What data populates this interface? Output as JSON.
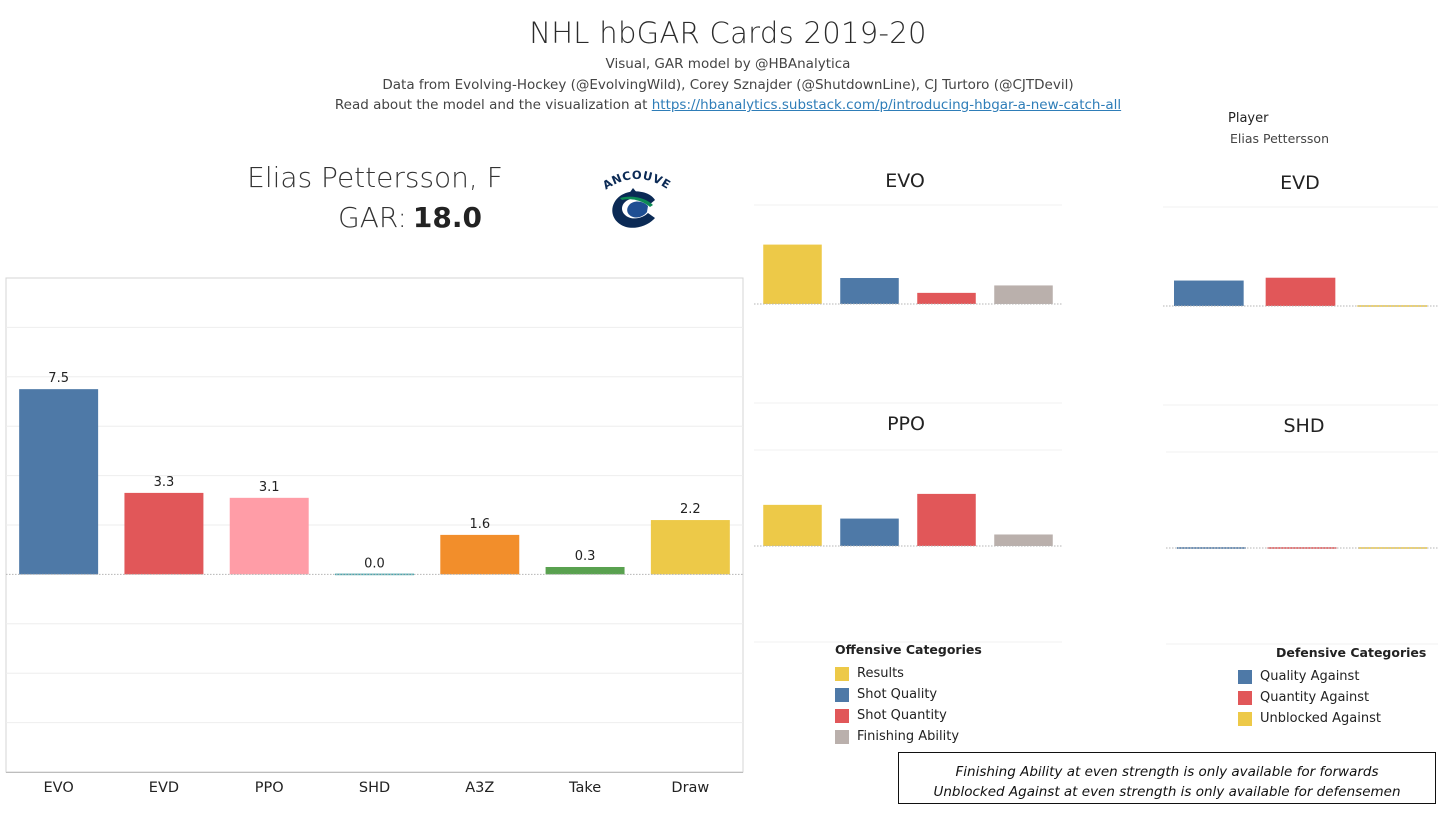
{
  "header": {
    "title": "NHL hbGAR Cards 2019-20",
    "subtitle1": "Visual, GAR model by @HBAnalytica",
    "subtitle2": "Data from Evolving-Hockey (@EvolvingWild), Corey Sznajder (@ShutdownLine), CJ Turtoro (@CJTDevil)",
    "subtitle3_prefix": "Read about the model and the visualization at ",
    "subtitle3_link": "https://hbanalytics.substack.com/p/introducing-hbgar-a-new-catch-all"
  },
  "filter": {
    "label": "Player",
    "value": "Elias Pettersson"
  },
  "player": {
    "name": "Elias Pettersson, F",
    "gar_label": "GAR:",
    "gar_value": "18.0"
  },
  "logo": {
    "text": "VANCOUVER",
    "colors": {
      "navy": "#0b2a55",
      "blue": "#1f4f93",
      "green": "#0d8a55"
    }
  },
  "colors": {
    "evo": "#4e79a7",
    "evd": "#e15759",
    "ppo": "#ff9da7",
    "shd": "#4aa8b0",
    "a3z": "#f28e2b",
    "take": "#59a14f",
    "draw": "#edc948",
    "results": "#edc948",
    "shot_quality": "#4e79a7",
    "shot_quantity": "#e15759",
    "finishing": "#bab0ac",
    "quality_against": "#4e79a7",
    "quantity_against": "#e15759",
    "unblocked_against": "#edc948"
  },
  "chart_data": [
    {
      "type": "bar",
      "id": "gar-components",
      "categories": [
        "EVO",
        "EVD",
        "PPO",
        "SHD",
        "A3Z",
        "Take",
        "Draw"
      ],
      "values": [
        7.5,
        3.3,
        3.1,
        0.0,
        1.6,
        0.3,
        2.2
      ],
      "labels": [
        "7.5",
        "3.3",
        "3.1",
        "0.0",
        "1.6",
        "0.3",
        "2.2"
      ],
      "colors": [
        "#4e79a7",
        "#e15759",
        "#ff9da7",
        "#4aa8b0",
        "#f28e2b",
        "#59a14f",
        "#edc948"
      ],
      "ylim": [
        -8,
        12
      ],
      "grid": true
    },
    {
      "type": "bar",
      "id": "evo",
      "title": "EVO",
      "categories": [
        "Results",
        "Shot Quality",
        "Shot Quantity",
        "Finishing Ability"
      ],
      "values": [
        2.4,
        1.05,
        0.45,
        0.75
      ],
      "colors": [
        "#edc948",
        "#4e79a7",
        "#e15759",
        "#bab0ac"
      ],
      "ylim": [
        -4,
        4
      ]
    },
    {
      "type": "bar",
      "id": "evd",
      "title": "EVD",
      "categories": [
        "Quality Against",
        "Quantity Against",
        "Unblocked Against"
      ],
      "values": [
        0.9,
        1.0,
        0.0
      ],
      "colors": [
        "#4e79a7",
        "#e15759",
        "#edc948"
      ],
      "ylim": [
        -3.5,
        3.5
      ]
    },
    {
      "type": "bar",
      "id": "ppo",
      "title": "PPO",
      "categories": [
        "Results",
        "Shot Quality",
        "Shot Quantity",
        "Finishing Ability"
      ],
      "values": [
        1.5,
        1.0,
        1.9,
        0.42
      ],
      "colors": [
        "#edc948",
        "#4e79a7",
        "#e15759",
        "#bab0ac"
      ],
      "ylim": [
        -3.5,
        3.5
      ]
    },
    {
      "type": "bar",
      "id": "shd",
      "title": "SHD",
      "categories": [
        "Quality Against",
        "Quantity Against",
        "Unblocked Against"
      ],
      "values": [
        0.0,
        0.0,
        0.0
      ],
      "colors": [
        "#4e79a7",
        "#e15759",
        "#edc948"
      ],
      "ylim": [
        -3.5,
        3.5
      ]
    }
  ],
  "legends": {
    "offensive": {
      "title": "Offensive Categories",
      "items": [
        {
          "label": "Results",
          "color": "#edc948"
        },
        {
          "label": "Shot Quality",
          "color": "#4e79a7"
        },
        {
          "label": "Shot Quantity",
          "color": "#e15759"
        },
        {
          "label": "Finishing Ability",
          "color": "#bab0ac"
        }
      ]
    },
    "defensive": {
      "title": "Defensive Categories",
      "items": [
        {
          "label": "Quality Against",
          "color": "#4e79a7"
        },
        {
          "label": "Quantity Against",
          "color": "#e15759"
        },
        {
          "label": "Unblocked Against",
          "color": "#edc948"
        }
      ]
    }
  },
  "notes": {
    "line1": "Finishing Ability at even strength is only available for forwards",
    "line2": "Unblocked Against at even strength is only available for defensemen"
  }
}
